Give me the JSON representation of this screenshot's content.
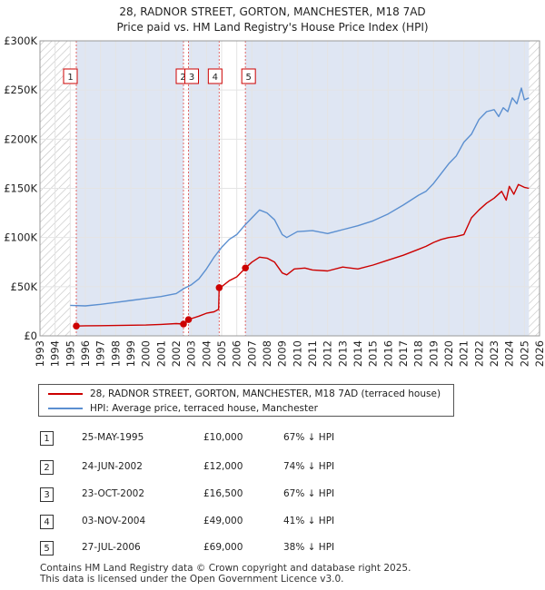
{
  "title_line1": "28, RADNOR STREET, GORTON, MANCHESTER, M18 7AD",
  "title_line2": "Price paid vs. HM Land Registry's House Price Index (HPI)",
  "colors": {
    "property": "#cc0000",
    "hpi": "#5b8fd0",
    "shade": "#dfe6f3",
    "hatch": "#bfbfbf",
    "grid": "#e4e4e4"
  },
  "legend": {
    "property_label": "28, RADNOR STREET, GORTON, MANCHESTER, M18 7AD (terraced house)",
    "hpi_label": "HPI: Average price, terraced house, Manchester"
  },
  "sales": [
    {
      "num": "1",
      "date": "25-MAY-1995",
      "price": "£10,000",
      "hpi": "67% ↓ HPI"
    },
    {
      "num": "2",
      "date": "24-JUN-2002",
      "price": "£12,000",
      "hpi": "74% ↓ HPI"
    },
    {
      "num": "3",
      "date": "23-OCT-2002",
      "price": "£16,500",
      "hpi": "67% ↓ HPI"
    },
    {
      "num": "4",
      "date": "03-NOV-2004",
      "price": "£49,000",
      "hpi": "41% ↓ HPI"
    },
    {
      "num": "5",
      "date": "27-JUL-2006",
      "price": "£69,000",
      "hpi": "38% ↓ HPI"
    }
  ],
  "footer_line1": "Contains HM Land Registry data © Crown copyright and database right 2025.",
  "footer_line2": "This data is licensed under the Open Government Licence v3.0.",
  "chart_data": {
    "type": "line",
    "xlim": [
      1993,
      2026
    ],
    "ylim": [
      0,
      300000
    ],
    "x_ticks": [
      1993,
      1994,
      1995,
      1996,
      1997,
      1998,
      1999,
      2000,
      2001,
      2002,
      2003,
      2004,
      2005,
      2006,
      2007,
      2008,
      2009,
      2010,
      2011,
      2012,
      2013,
      2014,
      2015,
      2016,
      2017,
      2018,
      2019,
      2020,
      2021,
      2022,
      2023,
      2024,
      2025,
      2026
    ],
    "y_ticks": [
      0,
      50000,
      100000,
      150000,
      200000,
      250000,
      300000
    ],
    "y_tick_labels": [
      "£0",
      "£50K",
      "£100K",
      "£150K",
      "£200K",
      "£250K",
      "£300K"
    ],
    "hatch_ranges": [
      [
        1993,
        1995.0
      ],
      [
        2025.3,
        2026
      ]
    ],
    "sale_markers": [
      {
        "label": "1",
        "x": 1995.4,
        "y": 10000
      },
      {
        "label": "2",
        "x": 2002.48,
        "y": 12000
      },
      {
        "label": "3",
        "x": 2002.81,
        "y": 16500
      },
      {
        "label": "4",
        "x": 2004.84,
        "y": 49000
      },
      {
        "label": "5",
        "x": 2006.57,
        "y": 69000
      }
    ],
    "series": [
      {
        "name": "28, RADNOR STREET, GORTON, MANCHESTER, M18 7AD (terraced house)",
        "x": [
          1995.4,
          1996,
          1997,
          1998,
          1999,
          2000,
          2001,
          2002,
          2002.48,
          2002.6,
          2002.81,
          2003,
          2003.5,
          2004,
          2004.5,
          2004.8,
          2004.84,
          2005,
          2005.5,
          2006,
          2006.57,
          2007,
          2007.5,
          2008,
          2008.5,
          2009,
          2009.3,
          2009.8,
          2010.5,
          2011,
          2012,
          2013,
          2014,
          2015,
          2016,
          2017,
          2018,
          2018.5,
          2019,
          2019.5,
          2020,
          2020.5,
          2021,
          2021.5,
          2022,
          2022.5,
          2023,
          2023.5,
          2023.8,
          2024,
          2024.3,
          2024.6,
          2025,
          2025.3
        ],
        "y": [
          10000,
          10200,
          10300,
          10500,
          10800,
          11000,
          11600,
          12500,
          12000,
          12600,
          16500,
          17500,
          20000,
          23000,
          24500,
          27000,
          49000,
          50000,
          56000,
          60000,
          69000,
          75000,
          80000,
          79000,
          75000,
          64000,
          62000,
          68000,
          69000,
          67000,
          66000,
          70000,
          68000,
          72000,
          77000,
          82000,
          88000,
          91000,
          95000,
          98000,
          100000,
          101000,
          103000,
          120000,
          128000,
          135000,
          140000,
          147000,
          138000,
          152000,
          144000,
          154000,
          151000,
          150000
        ]
      },
      {
        "name": "HPI: Average price, terraced house, Manchester",
        "x": [
          1995.0,
          1996,
          1997,
          1998,
          1999,
          2000,
          2001,
          2002,
          2002.5,
          2003,
          2003.5,
          2004,
          2004.5,
          2005,
          2005.5,
          2006,
          2006.5,
          2007,
          2007.5,
          2008,
          2008.5,
          2009,
          2009.3,
          2010,
          2011,
          2012,
          2013,
          2014,
          2015,
          2016,
          2017,
          2018,
          2018.5,
          2019,
          2019.5,
          2020,
          2020.5,
          2021,
          2021.5,
          2022,
          2022.5,
          2023,
          2023.3,
          2023.6,
          2023.9,
          2024.2,
          2024.5,
          2024.8,
          2025.0,
          2025.3
        ],
        "y": [
          31000,
          30500,
          32000,
          34000,
          36000,
          38000,
          40000,
          43000,
          48000,
          52000,
          58000,
          68000,
          80000,
          90000,
          98000,
          103000,
          112000,
          120000,
          128000,
          125000,
          118000,
          103000,
          100000,
          106000,
          107000,
          104000,
          108000,
          112000,
          117000,
          124000,
          133000,
          143000,
          147000,
          155000,
          165000,
          175000,
          183000,
          197000,
          205000,
          220000,
          228000,
          230000,
          223000,
          232000,
          228000,
          242000,
          236000,
          252000,
          240000,
          242000
        ]
      }
    ]
  }
}
